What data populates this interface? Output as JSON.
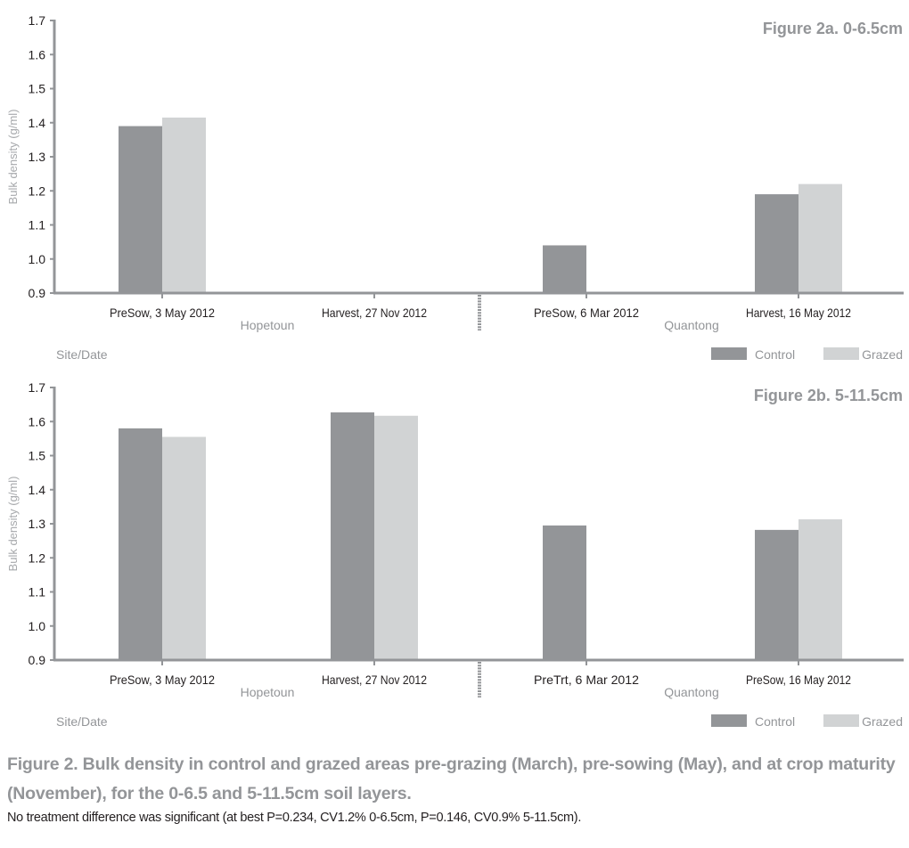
{
  "chart_data": [
    {
      "type": "bar",
      "title": "Figure 2a. 0-6.5cm",
      "xlabel": "Site/Date",
      "ylabel": "Bulk density (g/ml)",
      "ylim": [
        0.9,
        1.7
      ],
      "yticks": [
        "0.9",
        "1.0",
        "1.1",
        "1.2",
        "1.3",
        "1.4",
        "1.5",
        "1.6",
        "1.7"
      ],
      "categories": [
        "PreSow, 3 May 2012",
        "Harvest, 27 Nov 2012",
        "PreSow, 6 Mar 2012",
        "Harvest, 16 May 2012"
      ],
      "sites": [
        {
          "name": "Hopetoun",
          "categories": [
            0,
            1
          ]
        },
        {
          "name": "Quantong",
          "categories": [
            2,
            3
          ]
        }
      ],
      "series": [
        {
          "name": "Control",
          "color": "#939598",
          "values": [
            1.39,
            null,
            1.04,
            1.19
          ]
        },
        {
          "name": "Grazed",
          "color": "#d1d3d4",
          "values": [
            1.415,
            null,
            null,
            1.22
          ]
        }
      ],
      "legend": "bottom-right",
      "grid": false
    },
    {
      "type": "bar",
      "title": "Figure 2b. 5-11.5cm",
      "xlabel": "Site/Date",
      "ylabel": "Bulk density (g/ml)",
      "ylim": [
        0.9,
        1.7
      ],
      "yticks": [
        "0.9",
        "1.0",
        "1.1",
        "1.2",
        "1.3",
        "1.4",
        "1.5",
        "1.6",
        "1.7"
      ],
      "categories": [
        "PreSow, 3 May 2012",
        "Harvest, 27 Nov 2012",
        "PreTrt, 6 Mar 2012",
        "PreSow, 16 May 2012"
      ],
      "sites": [
        {
          "name": "Hopetoun",
          "categories": [
            0,
            1
          ]
        },
        {
          "name": "Quantong",
          "categories": [
            2,
            3
          ]
        }
      ],
      "series": [
        {
          "name": "Control",
          "color": "#939598",
          "values": [
            1.58,
            1.627,
            1.295,
            1.282
          ]
        },
        {
          "name": "Grazed",
          "color": "#d1d3d4",
          "values": [
            1.555,
            1.617,
            null,
            1.313
          ]
        }
      ],
      "legend": "bottom-right",
      "grid": false
    }
  ],
  "caption": {
    "title": "Figure 2. Bulk density in control and grazed areas pre-grazing (March), pre-sowing (May), and at crop maturity (November), for the 0-6.5 and 5-11.5cm soil layers.",
    "note": "No treatment difference was significant (at best P=0.234, CV1.2% 0-6.5cm, P=0.146, CV0.9% 5-11.5cm)."
  },
  "colors": {
    "axis": "#939598",
    "control": "#939598",
    "grazed": "#d1d3d4",
    "muted_text": "#939598",
    "dark_text": "#231f20"
  }
}
